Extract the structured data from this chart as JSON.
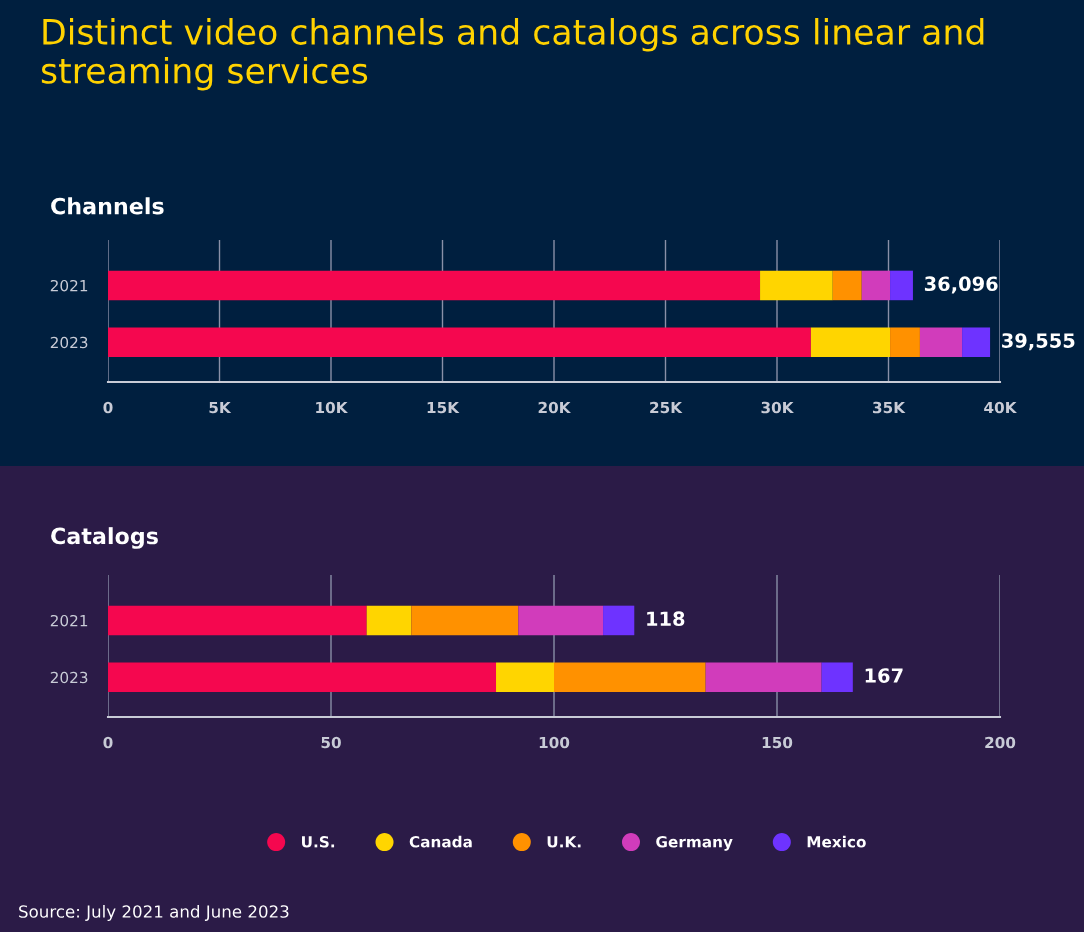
{
  "chart_data": [
    {
      "type": "bar",
      "orientation": "horizontal",
      "stacked": true,
      "title": "Distinct video channels and catalogs across linear and streaming services",
      "subtitle": "Channels",
      "categories": [
        "2021",
        "2023"
      ],
      "series": [
        {
          "name": "U.S.",
          "color": "#f5074f",
          "values": [
            29240,
            31520
          ]
        },
        {
          "name": "Canada",
          "color": "#ffd500",
          "values": [
            3260,
            3550
          ]
        },
        {
          "name": "U.K.",
          "color": "#ff9100",
          "values": [
            1300,
            1340
          ]
        },
        {
          "name": "Germany",
          "color": "#d13cbb",
          "values": [
            1270,
            1890
          ]
        },
        {
          "name": "Mexico",
          "color": "#6e33ff",
          "values": [
            1026,
            1255
          ]
        }
      ],
      "totals": [
        "36,096",
        "39,555"
      ],
      "xlim": [
        0,
        40000
      ],
      "xticks": [
        0,
        {
          "value": 5000,
          "label": "5K"
        },
        {
          "value": 10000,
          "label": "10K"
        },
        {
          "value": 15000,
          "label": "15K"
        },
        {
          "value": 20000,
          "label": "20K"
        },
        {
          "value": 25000,
          "label": "25K"
        },
        {
          "value": 30000,
          "label": "30K"
        },
        {
          "value": 35000,
          "label": "35K"
        },
        {
          "value": 40000,
          "label": "40K"
        }
      ],
      "grid": "x",
      "legend": "bottom"
    },
    {
      "type": "bar",
      "orientation": "horizontal",
      "stacked": true,
      "title": "Catalogs",
      "categories": [
        "2021",
        "2023"
      ],
      "series": [
        {
          "color": "#f5074f",
          "values": [
            58,
            87
          ]
        },
        {
          "color": "#ffd500",
          "values": [
            10,
            13
          ]
        },
        {
          "color": "#ff9100",
          "values": [
            24,
            34
          ]
        },
        {
          "color": "#d13cbb",
          "values": [
            19,
            26
          ]
        },
        {
          "color": "#6e33ff",
          "values": [
            7,
            7
          ]
        }
      ],
      "totals": [
        "118",
        "167"
      ],
      "xlim": [
        0,
        200
      ],
      "xticks": [
        0,
        50,
        100,
        150,
        200
      ],
      "grid": "x",
      "annotations": [
        "Source: July 2021 and June 2023"
      ]
    }
  ]
}
